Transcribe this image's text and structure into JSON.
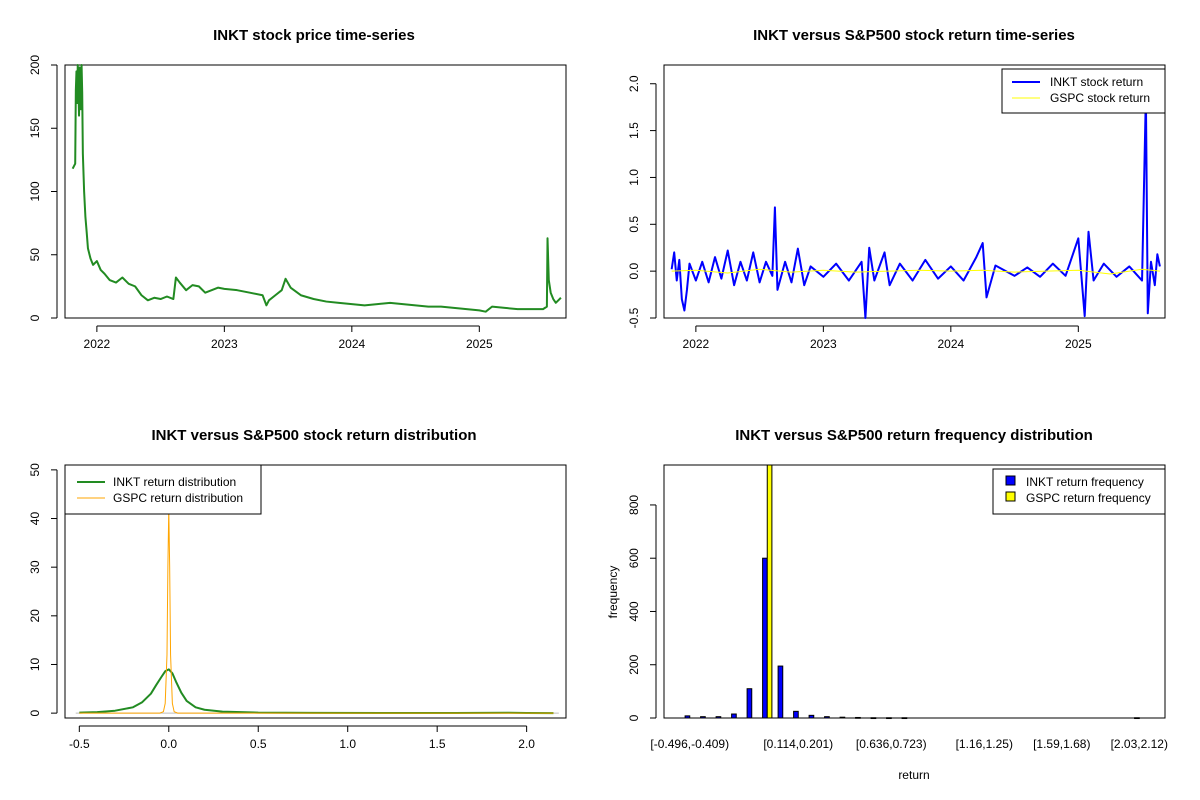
{
  "chart_data": [
    {
      "type": "line",
      "title": "INKT stock price time-series",
      "xlabel": "",
      "ylabel": "",
      "xlim": [
        2021.75,
        2025.68
      ],
      "ylim": [
        0,
        200
      ],
      "x_ticks": [
        2022,
        2023,
        2024,
        2025
      ],
      "x_tick_labels": [
        "2022",
        "2023",
        "2024",
        "2025"
      ],
      "y_ticks": [
        0,
        50,
        100,
        150,
        200
      ],
      "y_tick_labels": [
        "0",
        "50",
        "100",
        "150",
        "200"
      ],
      "series": [
        {
          "name": "INKT stock price",
          "color": "#228b22",
          "points": [
            [
              2021.81,
              118
            ],
            [
              2021.82,
              120
            ],
            [
              2021.83,
              122
            ],
            [
              2021.835,
              180
            ],
            [
              2021.84,
              195
            ],
            [
              2021.845,
              170
            ],
            [
              2021.85,
              200
            ],
            [
              2021.855,
              185
            ],
            [
              2021.86,
              160
            ],
            [
              2021.865,
              198
            ],
            [
              2021.87,
              175
            ],
            [
              2021.875,
              165
            ],
            [
              2021.88,
              200
            ],
            [
              2021.885,
              178
            ],
            [
              2021.89,
              130
            ],
            [
              2021.9,
              100
            ],
            [
              2021.91,
              80
            ],
            [
              2021.92,
              68
            ],
            [
              2021.93,
              55
            ],
            [
              2021.95,
              47
            ],
            [
              2021.97,
              42
            ],
            [
              2022.0,
              45
            ],
            [
              2022.03,
              38
            ],
            [
              2022.06,
              35
            ],
            [
              2022.1,
              30
            ],
            [
              2022.15,
              28
            ],
            [
              2022.2,
              32
            ],
            [
              2022.25,
              27
            ],
            [
              2022.3,
              25
            ],
            [
              2022.35,
              18
            ],
            [
              2022.4,
              14
            ],
            [
              2022.45,
              16
            ],
            [
              2022.5,
              15
            ],
            [
              2022.55,
              17
            ],
            [
              2022.6,
              15
            ],
            [
              2022.62,
              32
            ],
            [
              2022.65,
              28
            ],
            [
              2022.7,
              22
            ],
            [
              2022.75,
              26
            ],
            [
              2022.8,
              25
            ],
            [
              2022.85,
              20
            ],
            [
              2022.9,
              22
            ],
            [
              2022.95,
              24
            ],
            [
              2023.0,
              23
            ],
            [
              2023.1,
              22
            ],
            [
              2023.2,
              20
            ],
            [
              2023.3,
              18
            ],
            [
              2023.33,
              10
            ],
            [
              2023.35,
              14
            ],
            [
              2023.4,
              18
            ],
            [
              2023.45,
              22
            ],
            [
              2023.48,
              31
            ],
            [
              2023.52,
              24
            ],
            [
              2023.6,
              18
            ],
            [
              2023.7,
              15
            ],
            [
              2023.8,
              13
            ],
            [
              2023.9,
              12
            ],
            [
              2024.0,
              11
            ],
            [
              2024.1,
              10
            ],
            [
              2024.2,
              11
            ],
            [
              2024.3,
              12
            ],
            [
              2024.4,
              11
            ],
            [
              2024.5,
              10
            ],
            [
              2024.6,
              9
            ],
            [
              2024.7,
              9
            ],
            [
              2024.8,
              8
            ],
            [
              2024.9,
              7
            ],
            [
              2025.0,
              6
            ],
            [
              2025.05,
              5
            ],
            [
              2025.1,
              9
            ],
            [
              2025.2,
              8
            ],
            [
              2025.3,
              7
            ],
            [
              2025.4,
              7
            ],
            [
              2025.5,
              7
            ],
            [
              2025.53,
              9
            ],
            [
              2025.535,
              63
            ],
            [
              2025.545,
              30
            ],
            [
              2025.56,
              20
            ],
            [
              2025.58,
              15
            ],
            [
              2025.6,
              12
            ],
            [
              2025.62,
              14
            ],
            [
              2025.64,
              16
            ]
          ]
        }
      ]
    },
    {
      "type": "line",
      "title": "INKT versus S&P500 stock return time-series",
      "xlabel": "",
      "ylabel": "",
      "xlim": [
        2021.75,
        2025.68
      ],
      "ylim": [
        -0.5,
        2.2
      ],
      "x_ticks": [
        2022,
        2023,
        2024,
        2025
      ],
      "x_tick_labels": [
        "2022",
        "2023",
        "2024",
        "2025"
      ],
      "y_ticks": [
        -0.5,
        0.0,
        0.5,
        1.0,
        1.5,
        2.0
      ],
      "y_tick_labels": [
        "-0.5",
        "0.0",
        "0.5",
        "1.0",
        "1.5",
        "2.0"
      ],
      "legend": [
        "INKT stock return",
        "GSPC stock return"
      ],
      "legend_position": "top-right",
      "series": [
        {
          "name": "INKT stock return",
          "color": "#0000ff",
          "points": [
            [
              2021.81,
              0.02
            ],
            [
              2021.83,
              0.2
            ],
            [
              2021.85,
              -0.1
            ],
            [
              2021.87,
              0.12
            ],
            [
              2021.89,
              -0.3
            ],
            [
              2021.91,
              -0.42
            ],
            [
              2021.93,
              -0.2
            ],
            [
              2021.95,
              0.08
            ],
            [
              2022.0,
              -0.1
            ],
            [
              2022.05,
              0.1
            ],
            [
              2022.1,
              -0.12
            ],
            [
              2022.15,
              0.15
            ],
            [
              2022.2,
              -0.08
            ],
            [
              2022.25,
              0.22
            ],
            [
              2022.3,
              -0.15
            ],
            [
              2022.35,
              0.1
            ],
            [
              2022.4,
              -0.1
            ],
            [
              2022.45,
              0.2
            ],
            [
              2022.5,
              -0.12
            ],
            [
              2022.55,
              0.1
            ],
            [
              2022.6,
              -0.05
            ],
            [
              2022.62,
              0.68
            ],
            [
              2022.64,
              -0.2
            ],
            [
              2022.7,
              0.1
            ],
            [
              2022.75,
              -0.12
            ],
            [
              2022.8,
              0.24
            ],
            [
              2022.85,
              -0.15
            ],
            [
              2022.9,
              0.05
            ],
            [
              2023.0,
              -0.06
            ],
            [
              2023.1,
              0.08
            ],
            [
              2023.2,
              -0.1
            ],
            [
              2023.3,
              0.1
            ],
            [
              2023.33,
              -0.5
            ],
            [
              2023.36,
              0.25
            ],
            [
              2023.4,
              -0.1
            ],
            [
              2023.48,
              0.2
            ],
            [
              2023.52,
              -0.15
            ],
            [
              2023.6,
              0.08
            ],
            [
              2023.7,
              -0.1
            ],
            [
              2023.8,
              0.12
            ],
            [
              2023.9,
              -0.08
            ],
            [
              2024.0,
              0.05
            ],
            [
              2024.1,
              -0.1
            ],
            [
              2024.2,
              0.15
            ],
            [
              2024.25,
              0.3
            ],
            [
              2024.28,
              -0.28
            ],
            [
              2024.35,
              0.06
            ],
            [
              2024.5,
              -0.05
            ],
            [
              2024.6,
              0.04
            ],
            [
              2024.7,
              -0.06
            ],
            [
              2024.8,
              0.08
            ],
            [
              2024.9,
              -0.05
            ],
            [
              2025.0,
              0.35
            ],
            [
              2025.05,
              -0.48
            ],
            [
              2025.08,
              0.42
            ],
            [
              2025.12,
              -0.1
            ],
            [
              2025.2,
              0.08
            ],
            [
              2025.3,
              -0.06
            ],
            [
              2025.4,
              0.05
            ],
            [
              2025.5,
              -0.1
            ],
            [
              2025.53,
              1.88
            ],
            [
              2025.545,
              -0.45
            ],
            [
              2025.57,
              0.1
            ],
            [
              2025.6,
              -0.15
            ],
            [
              2025.62,
              0.18
            ],
            [
              2025.64,
              0.05
            ]
          ]
        },
        {
          "name": "GSPC stock return",
          "color": "#ffff00",
          "points": [
            [
              2021.81,
              0.0
            ],
            [
              2022.0,
              0.01
            ],
            [
              2022.25,
              -0.02
            ],
            [
              2022.5,
              0.02
            ],
            [
              2022.75,
              -0.01
            ],
            [
              2023.0,
              0.01
            ],
            [
              2023.25,
              -0.01
            ],
            [
              2023.5,
              0.0
            ],
            [
              2023.75,
              0.01
            ],
            [
              2024.0,
              0.0
            ],
            [
              2024.25,
              0.01
            ],
            [
              2024.5,
              -0.01
            ],
            [
              2024.75,
              0.0
            ],
            [
              2025.0,
              0.01
            ],
            [
              2025.25,
              -0.03
            ],
            [
              2025.5,
              0.02
            ],
            [
              2025.64,
              0.0
            ]
          ]
        }
      ]
    },
    {
      "type": "line",
      "title": "INKT versus S&P500 stock return distribution",
      "xlabel": "",
      "ylabel": "",
      "xlim": [
        -0.58,
        2.22
      ],
      "ylim": [
        -1,
        51
      ],
      "x_ticks": [
        -0.5,
        0.0,
        0.5,
        1.0,
        1.5,
        2.0
      ],
      "x_tick_labels": [
        "-0.5",
        "0.0",
        "0.5",
        "1.0",
        "1.5",
        "2.0"
      ],
      "y_ticks": [
        0,
        10,
        20,
        30,
        40,
        50
      ],
      "y_tick_labels": [
        "0",
        "10",
        "20",
        "30",
        "40",
        "50"
      ],
      "legend": [
        "INKT return distribution",
        "GSPC return distribution"
      ],
      "legend_position": "top-left",
      "series": [
        {
          "name": "INKT return distribution",
          "color": "#228b22",
          "points": [
            [
              -0.5,
              0.1
            ],
            [
              -0.4,
              0.2
            ],
            [
              -0.3,
              0.5
            ],
            [
              -0.2,
              1.2
            ],
            [
              -0.15,
              2.2
            ],
            [
              -0.1,
              4.0
            ],
            [
              -0.07,
              5.8
            ],
            [
              -0.04,
              7.5
            ],
            [
              -0.02,
              8.6
            ],
            [
              0.0,
              9.0
            ],
            [
              0.02,
              8.2
            ],
            [
              0.04,
              6.5
            ],
            [
              0.07,
              4.2
            ],
            [
              0.1,
              2.5
            ],
            [
              0.15,
              1.2
            ],
            [
              0.2,
              0.7
            ],
            [
              0.3,
              0.3
            ],
            [
              0.5,
              0.1
            ],
            [
              0.8,
              0.05
            ],
            [
              1.2,
              0.03
            ],
            [
              1.6,
              0.02
            ],
            [
              1.9,
              0.08
            ],
            [
              2.0,
              0.03
            ],
            [
              2.15,
              0.0
            ]
          ]
        },
        {
          "name": "GSPC return distribution",
          "color": "#ffa500",
          "points": [
            [
              -0.5,
              0.0
            ],
            [
              -0.05,
              0.0
            ],
            [
              -0.03,
              0.3
            ],
            [
              -0.02,
              2.0
            ],
            [
              -0.01,
              12.0
            ],
            [
              -0.005,
              30.0
            ],
            [
              0.0,
              42.0
            ],
            [
              0.005,
              30.0
            ],
            [
              0.01,
              12.0
            ],
            [
              0.02,
              2.0
            ],
            [
              0.03,
              0.3
            ],
            [
              0.05,
              0.0
            ],
            [
              2.15,
              0.0
            ]
          ]
        }
      ]
    },
    {
      "type": "bar",
      "title": "INKT versus S&P500 return frequency distribution",
      "xlabel": "return",
      "ylabel": "frequency",
      "ylim": [
        0,
        950
      ],
      "y_ticks": [
        0,
        200,
        400,
        600,
        800
      ],
      "y_tick_labels": [
        "0",
        "200",
        "400",
        "600",
        "800"
      ],
      "x_tick_labels": [
        "[-0.496,-0.409)",
        "[0.114,0.201)",
        "[0.636,0.723)",
        "[1.16,1.25)",
        "[1.59,1.68)",
        "[2.03,2.12)"
      ],
      "x_tick_bins": [
        0,
        7,
        13,
        19,
        24,
        29
      ],
      "legend": [
        "INKT return frequency",
        "GSPC return frequency"
      ],
      "legend_position": "top-right",
      "series": [
        {
          "name": "INKT return frequency",
          "color": "#0000ff",
          "values": [
            8,
            5,
            5,
            15,
            110,
            600,
            195,
            25,
            10,
            5,
            3,
            2,
            1,
            1,
            1,
            0,
            0,
            0,
            0,
            0,
            0,
            0,
            0,
            0,
            0,
            0,
            0,
            0,
            0,
            1
          ]
        },
        {
          "name": "GSPC return frequency",
          "color": "#ffff00",
          "values": [
            0,
            0,
            0,
            0,
            0,
            960,
            0,
            0,
            0,
            0,
            0,
            0,
            0,
            0,
            0,
            0,
            0,
            0,
            0,
            0,
            0,
            0,
            0,
            0,
            0,
            0,
            0,
            0,
            0,
            0
          ]
        }
      ]
    }
  ]
}
